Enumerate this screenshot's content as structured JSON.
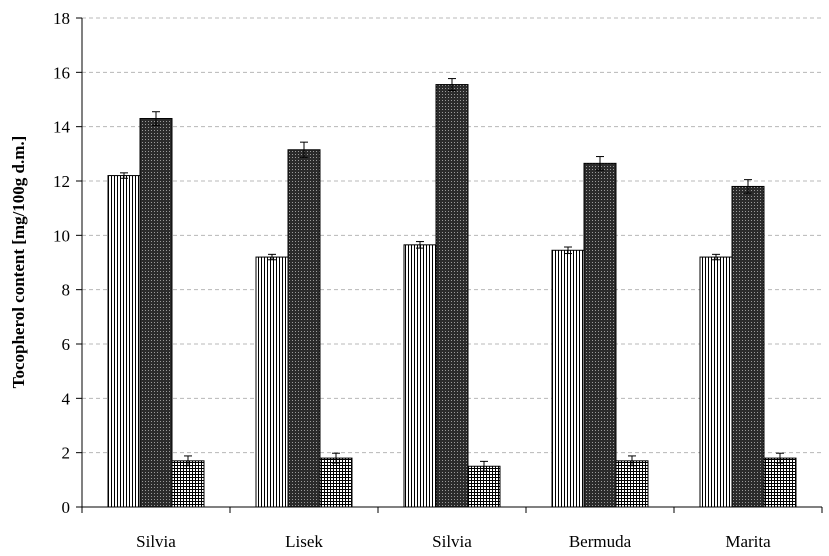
{
  "chart_data": {
    "type": "bar",
    "categories": [
      "Silvia",
      "Lisek",
      "Silvia",
      "Bermuda",
      "Marita"
    ],
    "series": [
      {
        "values": [
          12.2,
          9.2,
          9.65,
          9.45,
          9.2
        ],
        "errors": [
          0.1,
          0.1,
          0.12,
          0.12,
          0.1
        ],
        "pattern": "vertical-lines"
      },
      {
        "values": [
          14.3,
          13.15,
          15.55,
          12.65,
          11.8
        ],
        "errors": [
          0.25,
          0.28,
          0.22,
          0.25,
          0.25
        ],
        "pattern": "dark-dots"
      },
      {
        "values": [
          1.7,
          1.8,
          1.5,
          1.7,
          1.8
        ],
        "errors": [
          0.18,
          0.18,
          0.18,
          0.18,
          0.18
        ],
        "pattern": "grid"
      }
    ],
    "xlabel": "",
    "ylabel": "Tocopherol content [mg/100g d.m.]",
    "ylim": [
      0,
      18
    ],
    "yticks": [
      0,
      2,
      4,
      6,
      8,
      10,
      12,
      14,
      16,
      18
    ],
    "grid": true
  }
}
